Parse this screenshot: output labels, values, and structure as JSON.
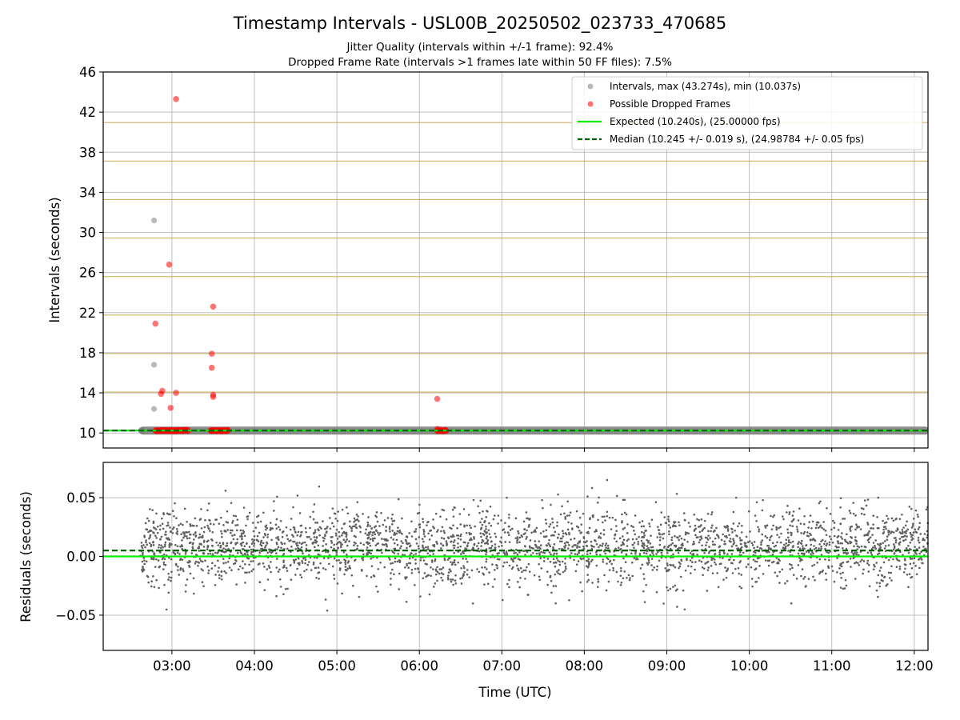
{
  "figure": {
    "title": "Timestamp Intervals - USL00B_20250502_023733_470685",
    "subtitle_1": "Jitter Quality (intervals within +/-1 frame): 92.4%",
    "subtitle_2": "Dropped Frame Rate (intervals >1 frames late within 50 FF files): 7.5%"
  },
  "colors": {
    "intervals": "#808080",
    "dropped": "#ff0000",
    "expected": "#00ee00",
    "median": "#006400",
    "threshold_band": "#c8a850",
    "grid": "#b0b0b0",
    "residuals": "#606060"
  },
  "chart_data": [
    {
      "type": "scatter",
      "panel": "intervals",
      "ylabel": "Intervals (seconds)",
      "xlabel": "",
      "xlim": [
        "02:10",
        "12:10"
      ],
      "ylim": [
        8.5,
        46
      ],
      "y_ticks": [
        10,
        14,
        18,
        22,
        26,
        30,
        34,
        38,
        42,
        46
      ],
      "x_ticks": [
        "03:00",
        "04:00",
        "05:00",
        "06:00",
        "07:00",
        "08:00",
        "09:00",
        "10:00",
        "11:00",
        "12:00"
      ],
      "grid": true,
      "legend_position": "top-right",
      "legend": [
        {
          "label": "Intervals, max (43.274s), min (10.037s)",
          "marker": "circle",
          "color_key": "intervals"
        },
        {
          "label": "Possible Dropped Frames",
          "marker": "circle",
          "color_key": "dropped"
        },
        {
          "label": "Expected (10.240s), (25.00000 fps)",
          "marker": "line",
          "color_key": "expected"
        },
        {
          "label": "Median (10.245 +/- 0.019 s), (24.98784 +/- 0.05 fps)",
          "marker": "dashed-line",
          "color_key": "median"
        }
      ],
      "reference_lines": [
        {
          "name": "Expected (10.240s), (25.00000 fps)",
          "y": 10.24,
          "style": "solid"
        },
        {
          "name": "Median (10.245 +/- 0.019 s), (24.98784 +/- 0.05 fps)",
          "y": 10.245,
          "style": "dashed"
        }
      ],
      "threshold_levels": [
        10.24,
        14.08,
        17.92,
        21.76,
        25.6,
        29.44,
        33.28,
        37.12,
        40.96
      ],
      "bulk_interval_band": {
        "x_start": "02:37",
        "x_end": "12:10",
        "y": 10.24
      },
      "series": [
        {
          "name": "Intervals, max (43.274s), min (10.037s)",
          "points": [
            {
              "x": "02:47",
              "y": 31.2
            },
            {
              "x": "02:47",
              "y": 16.8
            },
            {
              "x": "02:47",
              "y": 12.4
            }
          ]
        },
        {
          "name": "Possible Dropped Frames",
          "points": [
            {
              "x": "03:03",
              "y": 43.3
            },
            {
              "x": "02:58",
              "y": 26.8
            },
            {
              "x": "02:48",
              "y": 20.9
            },
            {
              "x": "02:53",
              "y": 14.2
            },
            {
              "x": "02:52",
              "y": 13.9
            },
            {
              "x": "03:03",
              "y": 14.0
            },
            {
              "x": "02:59",
              "y": 12.5
            },
            {
              "x": "03:30",
              "y": 22.6
            },
            {
              "x": "03:29",
              "y": 17.9
            },
            {
              "x": "03:29",
              "y": 16.5
            },
            {
              "x": "03:30",
              "y": 13.8
            },
            {
              "x": "03:30",
              "y": 13.6
            },
            {
              "x": "06:13",
              "y": 13.4
            },
            {
              "x": "06:13",
              "y": 10.4
            }
          ],
          "dense_runs": [
            {
              "x_start": "02:48",
              "x_end": "03:12",
              "y": 10.24
            },
            {
              "x_start": "03:28",
              "x_end": "03:41",
              "y": 10.24
            },
            {
              "x_start": "06:13",
              "x_end": "06:20",
              "y": 10.24
            }
          ]
        }
      ]
    },
    {
      "type": "scatter",
      "panel": "residuals",
      "ylabel": "Residuals (seconds)",
      "xlabel": "Time (UTC)",
      "xlim": [
        "02:10",
        "12:10"
      ],
      "ylim": [
        -0.08,
        0.08
      ],
      "y_ticks": [
        0.05,
        0.0,
        -0.05
      ],
      "y_tick_labels": [
        "0.05",
        "0.00",
        "−0.05"
      ],
      "x_ticks": [
        "03:00",
        "04:00",
        "05:00",
        "06:00",
        "07:00",
        "08:00",
        "09:00",
        "10:00",
        "11:00",
        "12:00"
      ],
      "grid": true,
      "reference_lines": [
        {
          "name": "Expected",
          "y": 0.0,
          "style": "solid"
        },
        {
          "name": "Median",
          "y": 0.005,
          "style": "dashed"
        }
      ],
      "scatter_cloud": {
        "x_start": "02:37",
        "x_end": "12:10",
        "center": 0.008,
        "spread": 0.016,
        "min": -0.047,
        "max": 0.07,
        "approx_count": 3000
      }
    }
  ]
}
